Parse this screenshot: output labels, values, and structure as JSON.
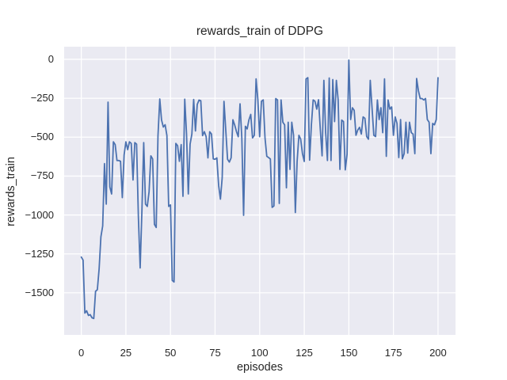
{
  "figure": {
    "title": "rewards_train of DDPG"
  },
  "chart_data": {
    "type": "line",
    "title": "rewards_train of DDPG",
    "xlabel": "episodes",
    "ylabel": "rewards_train",
    "legend": false,
    "grid": true,
    "axes_background": "#eaeaf2",
    "grid_color": "#ffffff",
    "text_color": "#262626",
    "line_color": "#4c72b0",
    "line_width": 1.8,
    "xlim": [
      -9.6,
      209.8
    ],
    "ylim": [
      -1770,
      81
    ],
    "x_ticks": [
      0,
      25,
      50,
      75,
      100,
      125,
      150,
      175,
      200
    ],
    "x_tick_labels": [
      "0",
      "25",
      "50",
      "75",
      "100",
      "125",
      "150",
      "175",
      "200"
    ],
    "y_ticks": [
      0,
      -250,
      -500,
      -750,
      -1000,
      -1250,
      -1500
    ],
    "y_tick_labels": [
      "0",
      "−250",
      "−500",
      "−750",
      "−1000",
      "−1250",
      "−1500"
    ],
    "x_start": 0,
    "x_step": 1,
    "series": [
      {
        "name": "rewards_train",
        "values": [
          -1270,
          -1290,
          -1630,
          -1615,
          -1645,
          -1640,
          -1660,
          -1665,
          -1490,
          -1480,
          -1345,
          -1140,
          -1070,
          -670,
          -930,
          -275,
          -820,
          -865,
          -530,
          -548,
          -650,
          -650,
          -655,
          -888,
          -615,
          -530,
          -580,
          -530,
          -540,
          -775,
          -535,
          -545,
          -1010,
          -1340,
          -970,
          -535,
          -930,
          -945,
          -850,
          -620,
          -640,
          -1060,
          -1080,
          -490,
          -255,
          -390,
          -435,
          -420,
          -490,
          -945,
          -935,
          -1420,
          -1430,
          -540,
          -555,
          -655,
          -548,
          -880,
          -256,
          -478,
          -865,
          -545,
          -480,
          -258,
          -460,
          -290,
          -262,
          -266,
          -490,
          -465,
          -497,
          -633,
          -465,
          -480,
          -640,
          -642,
          -633,
          -810,
          -898,
          -760,
          -270,
          -455,
          -642,
          -660,
          -633,
          -388,
          -422,
          -464,
          -497,
          -286,
          -505,
          -1002,
          -430,
          -447,
          -388,
          -354,
          -505,
          -488,
          -126,
          -261,
          -497,
          -269,
          -261,
          -505,
          -623,
          -631,
          -640,
          -951,
          -942,
          -252,
          -261,
          -926,
          -261,
          -404,
          -421,
          -825,
          -404,
          -707,
          -404,
          -488,
          -984,
          -656,
          -488,
          -513,
          -606,
          -656,
          -126,
          -118,
          -648,
          -421,
          -261,
          -269,
          -320,
          -260,
          -450,
          -620,
          -135,
          -470,
          -650,
          -120,
          -650,
          -130,
          -400,
          -135,
          -261,
          -707,
          -390,
          -400,
          -710,
          -610,
          -5,
          -387,
          -311,
          -328,
          -488,
          -454,
          -437,
          -480,
          -370,
          -379,
          -496,
          -513,
          -135,
          -311,
          -488,
          -496,
          -261,
          -387,
          -311,
          -471,
          -126,
          -623,
          -261,
          -320,
          -306,
          -488,
          -370,
          -412,
          -631,
          -387,
          -639,
          -606,
          -404,
          -602,
          -404,
          -471,
          -480,
          -606,
          -123,
          -202,
          -252,
          -252,
          -261,
          -252,
          -387,
          -404,
          -606,
          -412,
          -421,
          -387,
          -118
        ]
      }
    ]
  }
}
